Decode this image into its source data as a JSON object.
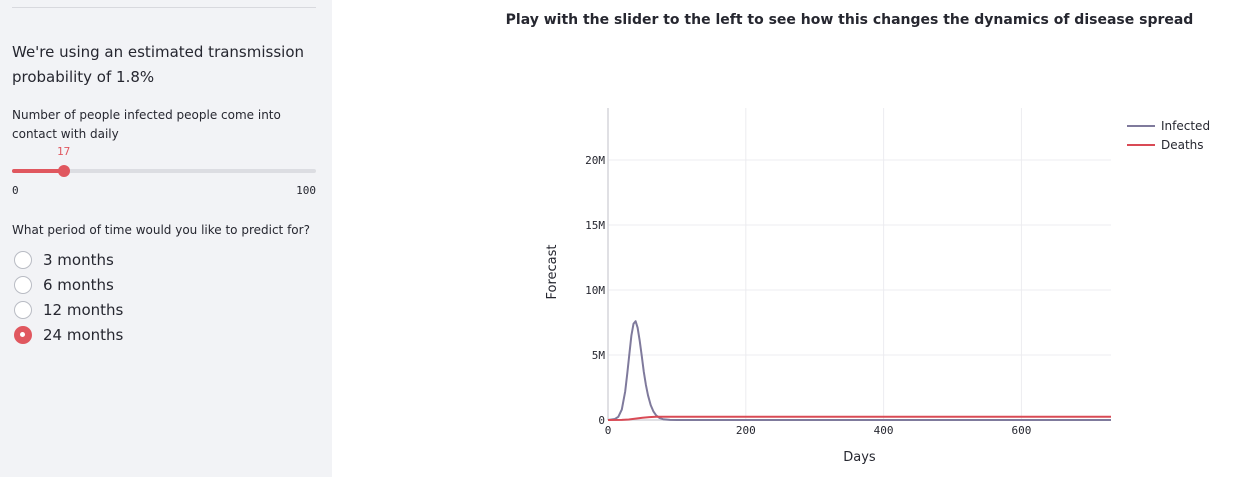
{
  "sidebar": {
    "info_text": "We're using an estimated transmission probability of 1.8%",
    "slider": {
      "label": "Number of people infected people come into contact with daily",
      "value": "17",
      "min": "0",
      "max": "100",
      "accent": "#e0575f"
    },
    "period": {
      "label": "What period of time would you like to predict for?",
      "options": [
        "3 months",
        "6 months",
        "12 months",
        "24 months"
      ],
      "selected": "24 months"
    }
  },
  "chart_data": {
    "type": "line",
    "title": "Play with the slider to the left to see how this changes the dynamics of disease spread",
    "xlabel": "Days",
    "ylabel": "Forecast",
    "xlim": [
      0,
      730
    ],
    "ylim": [
      0,
      24000000
    ],
    "xticks": [
      0,
      200,
      400,
      600
    ],
    "xtick_labels": [
      "0",
      "200",
      "400",
      "600"
    ],
    "yticks": [
      0,
      5000000,
      10000000,
      15000000,
      20000000
    ],
    "ytick_labels": [
      "0",
      "5M",
      "10M",
      "15M",
      "20M"
    ],
    "grid": true,
    "legend_position": "top-right",
    "series": [
      {
        "name": "Infected",
        "color": "#7f7a9c",
        "x": [
          0,
          10,
          15,
          20,
          25,
          28,
          31,
          34,
          37,
          40,
          43,
          46,
          49,
          52,
          55,
          58,
          62,
          66,
          70,
          75,
          80,
          90,
          100,
          110,
          730
        ],
        "values": [
          0,
          80000,
          250000,
          800000,
          2200000,
          3600000,
          5100000,
          6500000,
          7400000,
          7600000,
          7100000,
          6100000,
          4900000,
          3700000,
          2700000,
          1900000,
          1150000,
          650000,
          350000,
          150000,
          60000,
          10000,
          0,
          0,
          0
        ]
      },
      {
        "name": "Deaths",
        "color": "#d94a55",
        "x": [
          0,
          20,
          30,
          40,
          50,
          60,
          70,
          80,
          90,
          100,
          730
        ],
        "values": [
          0,
          8000,
          40000,
          110000,
          180000,
          225000,
          245000,
          252000,
          255000,
          256000,
          256000
        ]
      }
    ]
  }
}
